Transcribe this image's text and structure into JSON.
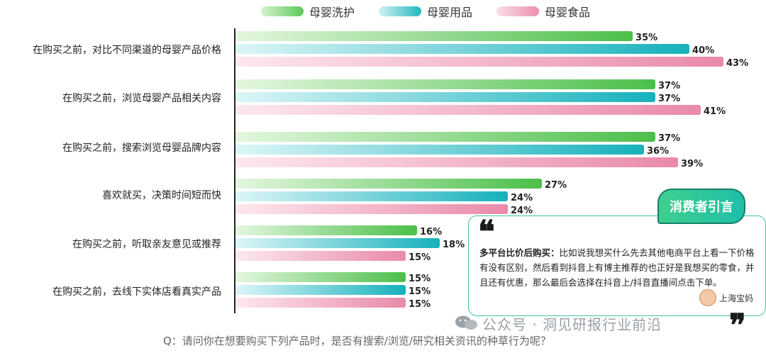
{
  "legend": [
    {
      "name": "母婴洗护",
      "color": "#5cc95a"
    },
    {
      "name": "母婴用品",
      "color": "#24b8c0"
    },
    {
      "name": "母婴食品",
      "color": "#ec8fac"
    }
  ],
  "chart_data": {
    "type": "bar",
    "orientation": "horizontal",
    "categories": [
      "在购买之前，对比不同渠道的母婴产品价格",
      "在购买之前，浏览母婴产品相关内容",
      "在购买之前，搜索浏览母婴品牌内容",
      "喜欢就买，决策时间短而快",
      "在购买之前，听取亲友意见或推荐",
      "在购买之前，去线下实体店看真实产品"
    ],
    "series": [
      {
        "name": "母婴洗护",
        "values": [
          35,
          37,
          37,
          27,
          16,
          15
        ]
      },
      {
        "name": "母婴用品",
        "values": [
          40,
          37,
          36,
          24,
          18,
          15
        ]
      },
      {
        "name": "母婴食品",
        "values": [
          43,
          41,
          39,
          24,
          15,
          15
        ]
      }
    ],
    "value_suffix": "%",
    "legend_position": "top",
    "grid": false
  },
  "question": "Q：请问你在想要购买下列产品时，是否有搜索/浏览/研究相关资讯的种草行为呢？",
  "watermark": "公众号 · 洞见研报行业前沿",
  "quote": {
    "badge": "消费者引言",
    "open_mark": "❝",
    "close_mark": "❞",
    "title": "多平台比价后购买：",
    "text": "比如说我想买什么先去其他电商平台上看一下价格有没有区别，然后看到抖音上有博主推荐的也正好是我想买的零食，并且还有优惠，那么最后会选择在抖音上/抖音直播间点击下单。",
    "author": "上海宝妈"
  }
}
